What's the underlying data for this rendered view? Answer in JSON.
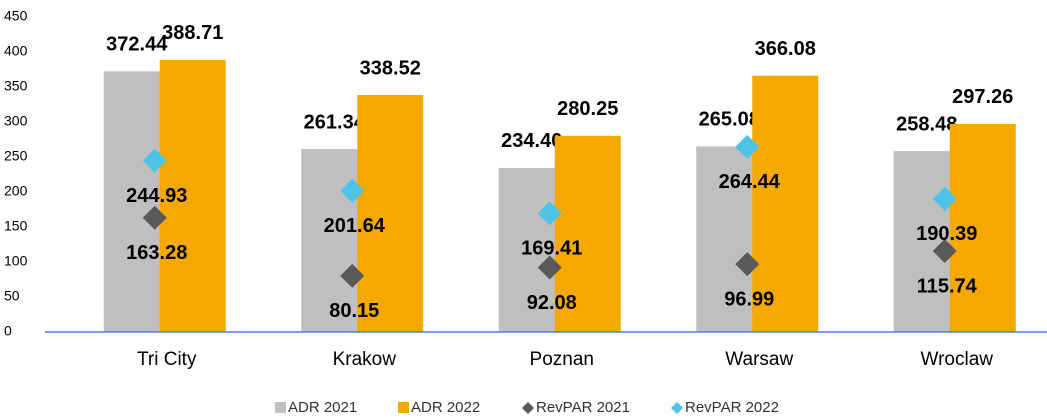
{
  "chart_data": {
    "type": "bar",
    "categories": [
      "Tri City",
      "Krakow",
      "Poznan",
      "Warsaw",
      "Wroclaw"
    ],
    "series": [
      {
        "name": "ADR 2021",
        "type": "bar",
        "color": "#bfbfbf",
        "values": [
          372.44,
          261.34,
          234.4,
          265.08,
          258.48
        ],
        "value_labels": [
          "372.44",
          "261.34",
          "234.40",
          "265.08",
          "258.48"
        ]
      },
      {
        "name": "ADR 2022",
        "type": "bar",
        "color": "#f5a800",
        "values": [
          388.71,
          338.52,
          280.25,
          366.08,
          297.26
        ],
        "value_labels": [
          "388.71",
          "338.52",
          "280.25",
          "366.08",
          "297.26"
        ]
      },
      {
        "name": "RevPAR 2021",
        "type": "scatter",
        "color": "#595959",
        "values": [
          163.28,
          80.15,
          92.08,
          96.99,
          115.74
        ],
        "value_labels": [
          "163.28",
          "80.15",
          "92.08",
          "96.99",
          "115.74"
        ]
      },
      {
        "name": "RevPAR 2022",
        "type": "scatter",
        "color": "#4dc3e8",
        "values": [
          244.93,
          201.64,
          169.41,
          264.44,
          190.39
        ],
        "value_labels": [
          "244.93",
          "201.64",
          "169.41",
          "264.44",
          "190.39"
        ]
      }
    ],
    "ylim": [
      0,
      450
    ],
    "yticks": [
      0,
      50,
      100,
      150,
      200,
      250,
      300,
      350,
      400,
      450
    ],
    "grid": false,
    "legend": "bottom"
  }
}
